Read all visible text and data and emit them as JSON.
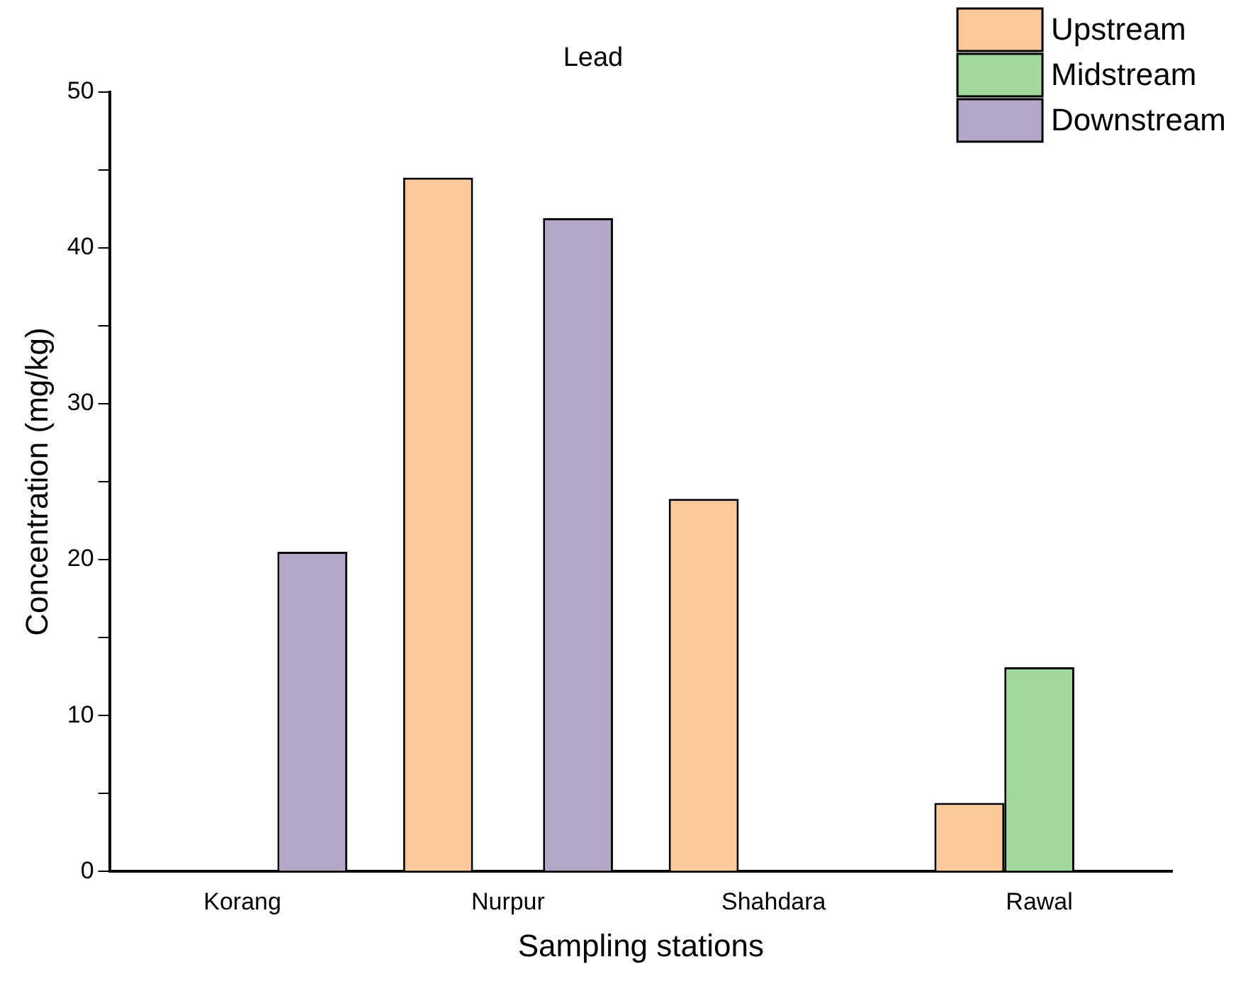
{
  "chart_data": {
    "type": "bar",
    "title": "Lead",
    "xlabel": "Sampling stations",
    "ylabel": "Concentration (mg/kg)",
    "categories": [
      "Korang",
      "Nurpur",
      "Shahdara",
      "Rawal"
    ],
    "series": [
      {
        "name": "Upstream",
        "color": "#fdc998",
        "values": [
          null,
          44.5,
          23.9,
          4.4
        ]
      },
      {
        "name": "Midstream",
        "color": "#a0d99b",
        "values": [
          null,
          null,
          null,
          13.1
        ]
      },
      {
        "name": "Downstream",
        "color": "#b4a7c9",
        "values": [
          20.5,
          41.9,
          null,
          null
        ]
      }
    ],
    "ylim": [
      0,
      50
    ],
    "yticks": [
      0,
      {
        "value": 5,
        "label": null
      },
      10,
      {
        "value": 15,
        "label": null
      },
      20,
      {
        "value": 25,
        "label": null
      },
      30,
      {
        "value": 35,
        "label": null
      },
      40,
      {
        "value": 45,
        "label": null
      },
      50
    ],
    "grid": false,
    "legend": "top right"
  }
}
